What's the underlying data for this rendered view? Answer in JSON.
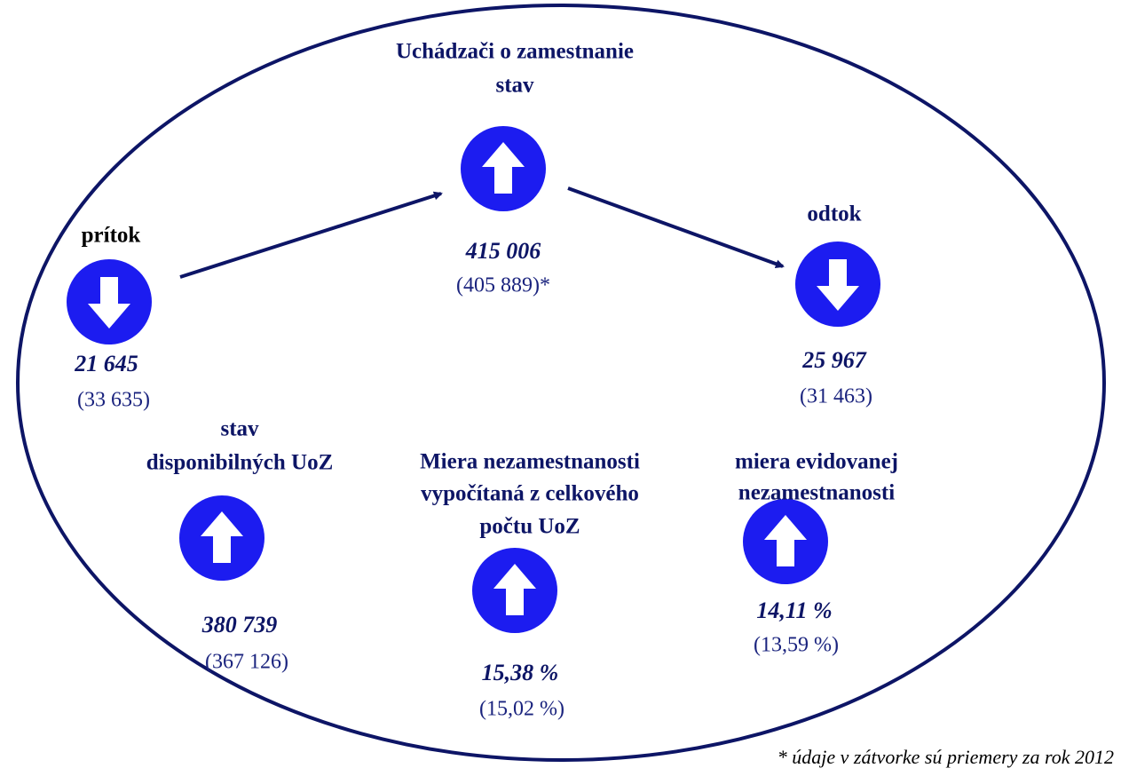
{
  "nodes": [
    {
      "title": [
        "Uchádzači o zamestnanie",
        "stav"
      ],
      "arrow": "up",
      "value": "415 006",
      "average": "(405 889)*"
    },
    {
      "title": [
        "prítok"
      ],
      "arrow": "down",
      "value": "21 645",
      "average": "(33 635)"
    },
    {
      "title": [
        "odtok"
      ],
      "arrow": "down",
      "value": "25 967",
      "average": "(31 463)"
    },
    {
      "title": [
        "stav",
        "disponibilných UoZ"
      ],
      "arrow": "up",
      "value": "380 739",
      "average": "(367 126)"
    },
    {
      "title": [
        "Miera nezamestnanosti",
        "vypočítaná z celkového",
        "počtu UoZ"
      ],
      "arrow": "up",
      "value": "15,38 %",
      "average": "(15,02 %)"
    },
    {
      "title": [
        "miera evidovanej",
        "nezamestnanosti"
      ],
      "arrow": "up",
      "value": "14,11 %",
      "average": "(13,59 %)"
    }
  ],
  "footnote": "* údaje v zátvorke sú priemery za rok 2012"
}
